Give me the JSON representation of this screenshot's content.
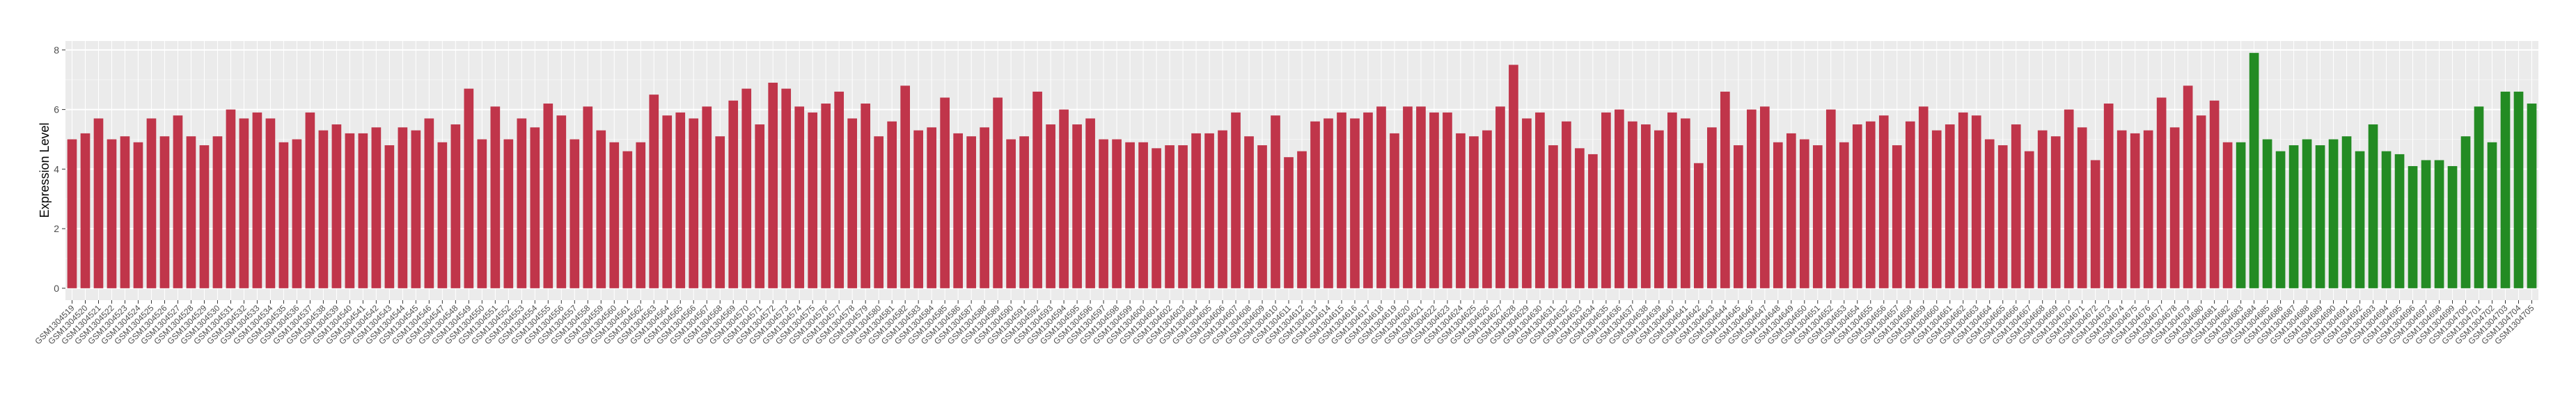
{
  "chart_data": {
    "type": "bar",
    "y_label": "Expression Level",
    "ylim": [
      -0.4,
      8.3
    ],
    "yticks": [
      0,
      2,
      4,
      6,
      8
    ],
    "grid": true,
    "groups": [
      {
        "color": "#c0354a",
        "categories": [
          "GSM1304519",
          "GSM1304520",
          "GSM1304521",
          "GSM1304522",
          "GSM1304523",
          "GSM1304524",
          "GSM1304525",
          "GSM1304526",
          "GSM1304527",
          "GSM1304528",
          "GSM1304529",
          "GSM1304530",
          "GSM1304531",
          "GSM1304532",
          "GSM1304533",
          "GSM1304534",
          "GSM1304535",
          "GSM1304536",
          "GSM1304537",
          "GSM1304538",
          "GSM1304539",
          "GSM1304540",
          "GSM1304541",
          "GSM1304542",
          "GSM1304543",
          "GSM1304544",
          "GSM1304545",
          "GSM1304546",
          "GSM1304547",
          "GSM1304548",
          "GSM1304549",
          "GSM1304550",
          "GSM1304551",
          "GSM1304552",
          "GSM1304553",
          "GSM1304554",
          "GSM1304555",
          "GSM1304556",
          "GSM1304557",
          "GSM1304558",
          "GSM1304559",
          "GSM1304560",
          "GSM1304561",
          "GSM1304562",
          "GSM1304563",
          "GSM1304564",
          "GSM1304565",
          "GSM1304566",
          "GSM1304567",
          "GSM1304568",
          "GSM1304569",
          "GSM1304570",
          "GSM1304571",
          "GSM1304572",
          "GSM1304573",
          "GSM1304574",
          "GSM1304575",
          "GSM1304576",
          "GSM1304577",
          "GSM1304578",
          "GSM1304579",
          "GSM1304580",
          "GSM1304581",
          "GSM1304582",
          "GSM1304583",
          "GSM1304584",
          "GSM1304585",
          "GSM1304586",
          "GSM1304587",
          "GSM1304588",
          "GSM1304589",
          "GSM1304590",
          "GSM1304591",
          "GSM1304592",
          "GSM1304593",
          "GSM1304594",
          "GSM1304595",
          "GSM1304596",
          "GSM1304597",
          "GSM1304598",
          "GSM1304599",
          "GSM1304600",
          "GSM1304601",
          "GSM1304602",
          "GSM1304603",
          "GSM1304604",
          "GSM1304605",
          "GSM1304606",
          "GSM1304607",
          "GSM1304608",
          "GSM1304609",
          "GSM1304610",
          "GSM1304611",
          "GSM1304612",
          "GSM1304613",
          "GSM1304614",
          "GSM1304615",
          "GSM1304616",
          "GSM1304617",
          "GSM1304618",
          "GSM1304619",
          "GSM1304620",
          "GSM1304621",
          "GSM1304622",
          "GSM1304623",
          "GSM1304624",
          "GSM1304625",
          "GSM1304626",
          "GSM1304627",
          "GSM1304628",
          "GSM1304629",
          "GSM1304630",
          "GSM1304631",
          "GSM1304632",
          "GSM1304633",
          "GSM1304634",
          "GSM1304635",
          "GSM1304636",
          "GSM1304637",
          "GSM1304638",
          "GSM1304639",
          "GSM1304640",
          "GSM1304641",
          "GSM1304642",
          "GSM1304643",
          "GSM1304644",
          "GSM1304645",
          "GSM1304646",
          "GSM1304647",
          "GSM1304648",
          "GSM1304649",
          "GSM1304650",
          "GSM1304651",
          "GSM1304652",
          "GSM1304653",
          "GSM1304654",
          "GSM1304655",
          "GSM1304656",
          "GSM1304657",
          "GSM1304658",
          "GSM1304659",
          "GSM1304660",
          "GSM1304661",
          "GSM1304662",
          "GSM1304663",
          "GSM1304664",
          "GSM1304665",
          "GSM1304666",
          "GSM1304667",
          "GSM1304668",
          "GSM1304669",
          "GSM1304670",
          "GSM1304671",
          "GSM1304672",
          "GSM1304673",
          "GSM1304674",
          "GSM1304675",
          "GSM1304676",
          "GSM1304677",
          "GSM1304678",
          "GSM1304679",
          "GSM1304680",
          "GSM1304681",
          "GSM1304682"
        ],
        "values": [
          5.0,
          5.2,
          5.7,
          5.0,
          5.1,
          4.9,
          5.7,
          5.1,
          5.8,
          5.1,
          4.8,
          5.1,
          6.0,
          5.7,
          5.9,
          5.7,
          4.9,
          5.0,
          5.9,
          5.3,
          5.5,
          5.2,
          5.2,
          5.4,
          4.8,
          5.4,
          5.3,
          5.7,
          4.9,
          5.5,
          6.7,
          5.0,
          6.1,
          5.0,
          5.7,
          5.4,
          6.2,
          5.8,
          5.0,
          6.1,
          5.3,
          4.9,
          4.6,
          4.9,
          6.5,
          5.8,
          5.9,
          5.7,
          6.1,
          5.1,
          6.3,
          6.7,
          5.5,
          6.9,
          6.7,
          6.1,
          5.9,
          6.2,
          6.6,
          5.7,
          6.2,
          5.1,
          5.6,
          6.8,
          5.3,
          5.4,
          6.4,
          5.2,
          5.1,
          5.4,
          6.4,
          5.0,
          5.1,
          6.6,
          5.5,
          6.0,
          5.5,
          5.7,
          5.0,
          5.0,
          4.9,
          4.9,
          4.7,
          4.8,
          4.8,
          5.2,
          5.2,
          5.3,
          5.9,
          5.1,
          4.8,
          5.8,
          4.4,
          4.6,
          5.6,
          5.7,
          5.9,
          5.7,
          5.9,
          6.1,
          5.2,
          6.1,
          6.1,
          5.9,
          5.9,
          5.2,
          5.1,
          5.3,
          6.1,
          7.5,
          5.7,
          5.9,
          4.8,
          5.6,
          4.7,
          4.5,
          5.9,
          6.0,
          5.6,
          5.5,
          5.3,
          5.9,
          5.7,
          4.2,
          5.4,
          6.6,
          4.8,
          6.0,
          6.1,
          4.9,
          5.2,
          5.0,
          4.8,
          6.0,
          4.9,
          5.5,
          5.6,
          5.8,
          4.8,
          5.6,
          6.1,
          5.3,
          5.5,
          5.9,
          5.8,
          5.0,
          4.8,
          5.5,
          4.6,
          5.3,
          5.1,
          6.0,
          5.4,
          4.3,
          6.2,
          5.3,
          5.2,
          5.3,
          6.4,
          5.4,
          6.8,
          5.8,
          6.3,
          4.9
        ]
      },
      {
        "color": "#238b23",
        "categories": [
          "GSM1304683",
          "GSM1304684",
          "GSM1304685",
          "GSM1304686",
          "GSM1304687",
          "GSM1304688",
          "GSM1304689",
          "GSM1304690",
          "GSM1304691",
          "GSM1304692",
          "GSM1304693",
          "GSM1304694",
          "GSM1304695",
          "GSM1304696",
          "GSM1304697",
          "GSM1304698",
          "GSM1304699",
          "GSM1304700",
          "GSM1304701",
          "GSM1304702",
          "GSM1304703",
          "GSM1304704",
          "GSM1304705"
        ],
        "values": [
          4.9,
          7.9,
          5.0,
          4.6,
          4.8,
          5.0,
          4.8,
          5.0,
          5.1,
          4.6,
          5.5,
          4.6,
          4.5,
          4.1,
          4.3,
          4.3,
          4.1,
          5.1,
          6.1,
          4.9,
          6.6,
          6.6,
          6.2
        ]
      }
    ]
  }
}
